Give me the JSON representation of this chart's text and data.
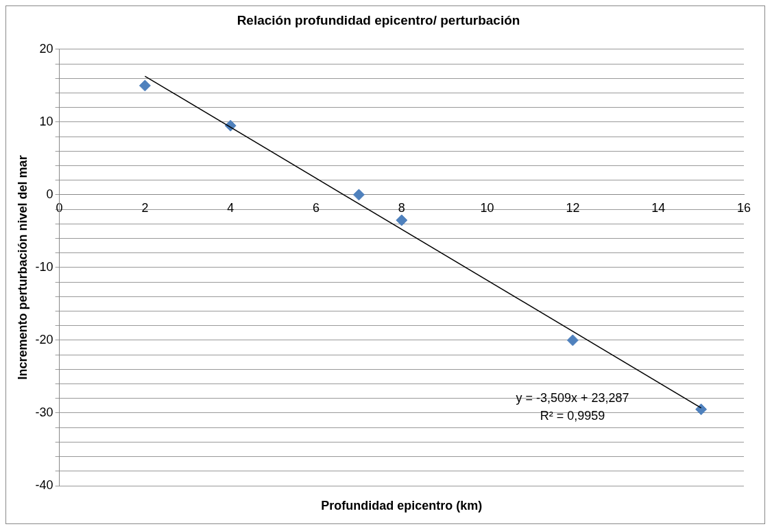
{
  "chart_data": {
    "type": "scatter",
    "title": "Relación profundidad epicentro/ perturbación",
    "xlabel": "Profundidad epicentro (km)",
    "ylabel": "Incremento perturbación nivel del mar",
    "x": [
      2,
      4,
      7,
      8,
      12,
      15
    ],
    "series": [
      {
        "color": "#4f81bd",
        "values": [
          15,
          9.5,
          0,
          -3.5,
          -20,
          -29.5
        ],
        "marker": "diamond"
      },
      {
        "type": "line",
        "color": "#000000",
        "x": [
          2,
          15
        ],
        "values": [
          16.3,
          -29.3
        ],
        "marker": "none",
        "line_style": "solid"
      }
    ],
    "xlim": [
      0,
      16
    ],
    "xticks": [
      0,
      2,
      4,
      6,
      8,
      10,
      12,
      14,
      16
    ],
    "ylim": [
      -40,
      20
    ],
    "yticks": [
      -40,
      {
        "value": -38,
        "label": null
      },
      {
        "value": -36,
        "label": null
      },
      {
        "value": -34,
        "label": null
      },
      {
        "value": -32,
        "label": null
      },
      -30,
      {
        "value": -28,
        "label": null
      },
      {
        "value": -26,
        "label": null
      },
      {
        "value": -24,
        "label": null
      },
      {
        "value": -22,
        "label": null
      },
      -20,
      {
        "value": -18,
        "label": null
      },
      {
        "value": -16,
        "label": null
      },
      {
        "value": -14,
        "label": null
      },
      {
        "value": -12,
        "label": null
      },
      -10,
      {
        "value": -8,
        "label": null
      },
      {
        "value": -6,
        "label": null
      },
      {
        "value": -4,
        "label": null
      },
      {
        "value": -2,
        "label": null
      },
      0,
      {
        "value": 2,
        "label": null
      },
      {
        "value": 4,
        "label": null
      },
      {
        "value": 6,
        "label": null
      },
      {
        "value": 8,
        "label": null
      },
      10,
      {
        "value": 12,
        "label": null
      },
      {
        "value": 14,
        "label": null
      },
      {
        "value": 16,
        "label": null
      },
      {
        "value": 18,
        "label": null
      },
      20
    ],
    "grid": "y",
    "legend": false,
    "annotations": [
      "y = -3,509x + 23,287",
      "R² = 0,9959"
    ]
  }
}
